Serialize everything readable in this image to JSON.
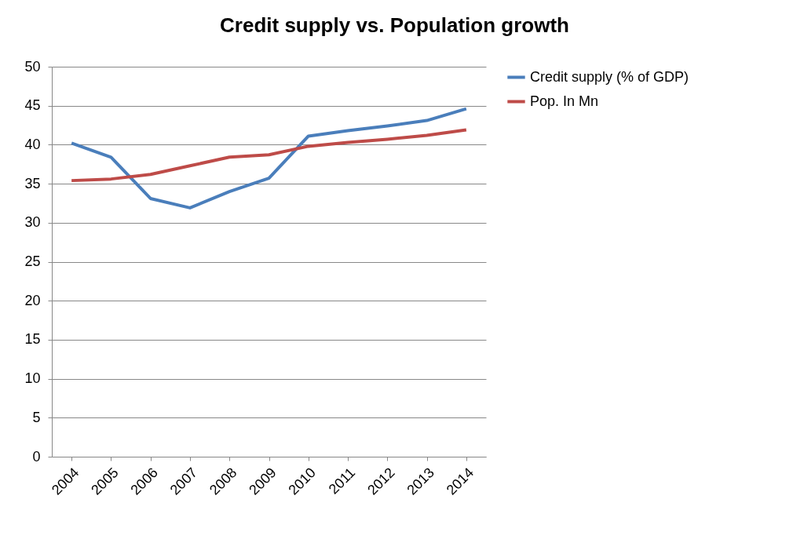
{
  "chart_data": {
    "type": "line",
    "title": "Credit supply vs. Population growth",
    "categories": [
      "2004",
      "2005",
      "2006",
      "2007",
      "2008",
      "2009",
      "2010",
      "2011",
      "2012",
      "2013",
      "2014"
    ],
    "series": [
      {
        "name": "Credit supply (% of GDP)",
        "color": "#4a7ebb",
        "values": [
          40.2,
          38.4,
          33.1,
          31.9,
          34,
          35.7,
          41.1,
          41.8,
          42.4,
          43.1,
          44.6
        ]
      },
      {
        "name": "Pop. In Mn",
        "color": "#be4b48",
        "values": [
          35.4,
          35.6,
          36.2,
          37.3,
          38.4,
          38.7,
          39.8,
          40.3,
          40.7,
          41.2,
          41.9
        ]
      }
    ],
    "ylim": [
      0,
      50
    ],
    "yticks": [
      0,
      5,
      10,
      15,
      20,
      25,
      30,
      35,
      40,
      45,
      50
    ],
    "grid": "y",
    "legend": "right",
    "marker": "none",
    "line_style": "solid"
  }
}
